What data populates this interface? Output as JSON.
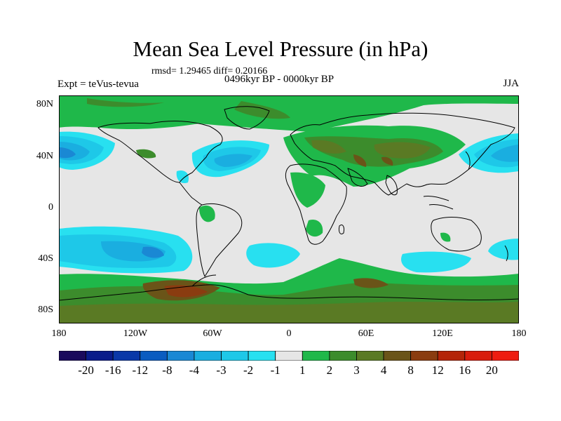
{
  "title": "Mean Sea Level Pressure (in hPa)",
  "stats_line": "rmsd= 1.29465 diff= 0.20166",
  "experiment": "Expt = teVus-tevua",
  "period": "0496kyr BP - 0000kyr BP",
  "season": "JJA",
  "lat_labels": [
    "80N",
    "40N",
    "0",
    "40S",
    "80S"
  ],
  "lon_labels": [
    "180",
    "120W",
    "60W",
    "0",
    "60E",
    "120E",
    "180"
  ],
  "colorbar": {
    "labels": [
      "-20",
      "-16",
      "-12",
      "-8",
      "-4",
      "-3",
      "-2",
      "-1",
      "1",
      "2",
      "3",
      "4",
      "8",
      "12",
      "16",
      "20"
    ],
    "colors": [
      "#1a0a5c",
      "#0a1c8a",
      "#0a38a8",
      "#0a5cc0",
      "#1a88d4",
      "#1aaee0",
      "#1ec8e8",
      "#28e0f0",
      "#e6e6e6",
      "#1fb84a",
      "#3c8c2c",
      "#5a7a24",
      "#6a5418",
      "#8a3c10",
      "#b42408",
      "#d81c0c",
      "#ee1c10"
    ]
  },
  "legend_colors": {
    "ocean_background": "#e6e6e6",
    "low_1": "#28e0f0",
    "low_2": "#1ec8e8",
    "low_3": "#1aaee0",
    "low_4": "#1a88d4",
    "high_1": "#1fb84a",
    "high_2": "#3c8c2c",
    "high_3": "#5a7a24",
    "high_4": "#6a5418",
    "high_5": "#8a3c10"
  }
}
